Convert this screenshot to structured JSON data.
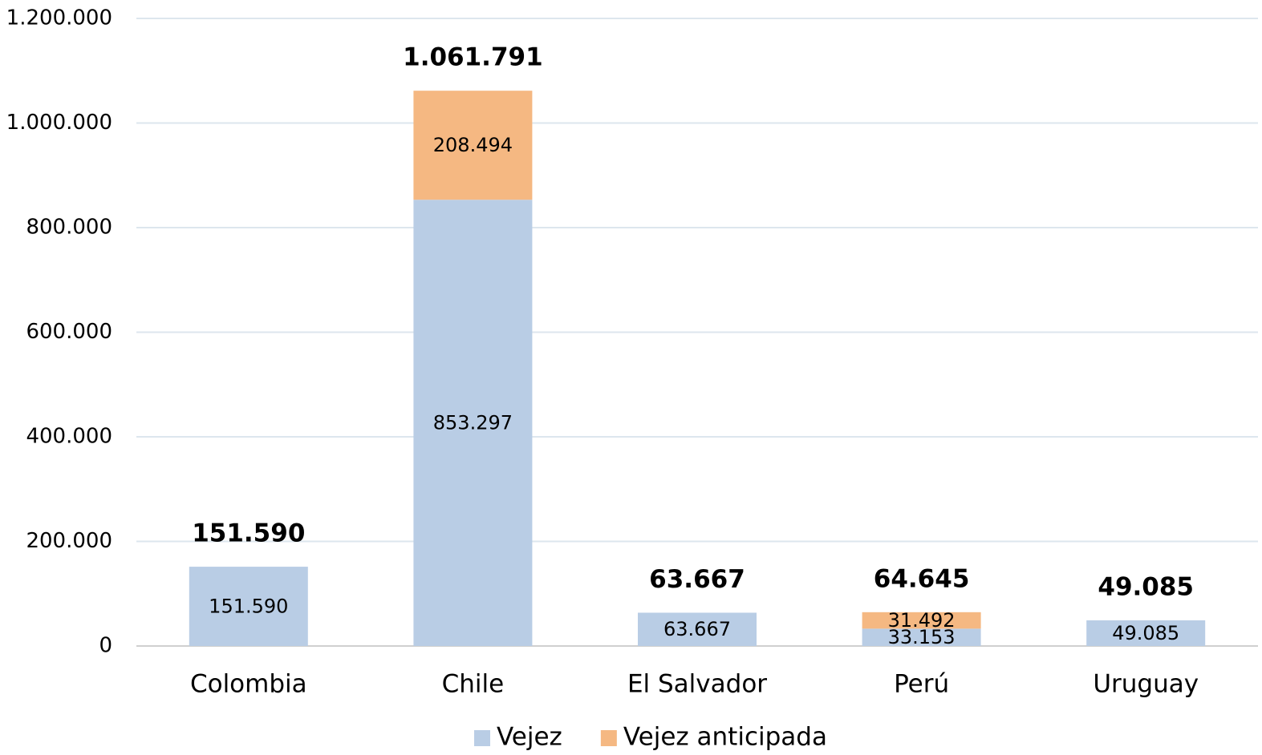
{
  "chart_data": {
    "type": "stacked_bar",
    "categories": [
      "Colombia",
      "Chile",
      "El Salvador",
      "Perú",
      "Uruguay"
    ],
    "series": [
      {
        "name": "Vejez",
        "color": "#b9cde5",
        "values": [
          151590,
          853297,
          63667,
          33153,
          49085
        ],
        "value_labels": [
          "151.590",
          "853.297",
          "63.667",
          "33.153",
          "49.085"
        ]
      },
      {
        "name": "Vejez anticipada",
        "color": "#f5b882",
        "values": [
          null,
          208494,
          null,
          31492,
          null
        ],
        "value_labels": [
          null,
          "208.494",
          null,
          "31.492",
          null
        ]
      }
    ],
    "totals": {
      "values": [
        151590,
        1061791,
        63667,
        64645,
        49085
      ],
      "value_labels": [
        "151.590",
        "1.061.791",
        "63.667",
        "64.645",
        "49.085"
      ]
    },
    "ylim": [
      0,
      1200000
    ],
    "yticks": [
      0,
      {
        "value": 200000,
        "label": "200.000"
      },
      {
        "value": 400000,
        "label": "400.000"
      },
      {
        "value": 600000,
        "label": "600.000"
      },
      {
        "value": 800000,
        "label": "800.000"
      },
      {
        "value": 1000000,
        "label": "1.000.000"
      },
      {
        "value": 1200000,
        "label": "1.200.000"
      }
    ],
    "grid": true,
    "legend": "bottom"
  }
}
